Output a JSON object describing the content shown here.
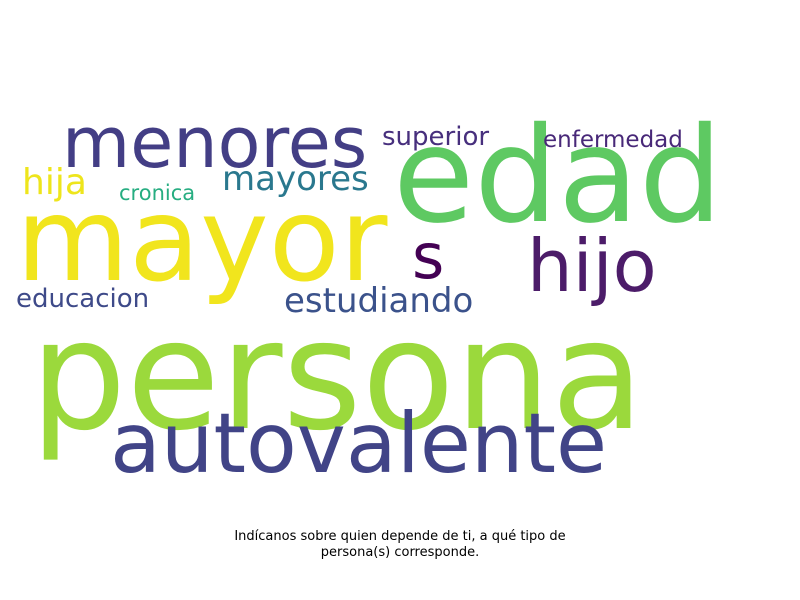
{
  "words": [
    {
      "text": "persona",
      "color": "#9bd93c"
    },
    {
      "text": "mayor",
      "color": "#f1e51d"
    },
    {
      "text": "edad",
      "color": "#5ec962"
    },
    {
      "text": "autovalente",
      "color": "#414487"
    },
    {
      "text": "menores",
      "color": "#433e85"
    },
    {
      "text": "hijo",
      "color": "#4c1c69"
    },
    {
      "text": "s",
      "color": "#440154"
    },
    {
      "text": "estudiando",
      "color": "#3b528b"
    },
    {
      "text": "mayores",
      "color": "#2a788e"
    },
    {
      "text": "hija",
      "color": "#eee51c"
    },
    {
      "text": "educacion",
      "color": "#3e4a89"
    },
    {
      "text": "superior",
      "color": "#472f7d"
    },
    {
      "text": "enfermedad",
      "color": "#482878"
    },
    {
      "text": "cronica",
      "color": "#26ad81"
    }
  ],
  "caption": {
    "line1": "Indícanos sobre quien depende de ti, a qué tipo de",
    "line2": "persona(s) corresponde."
  }
}
